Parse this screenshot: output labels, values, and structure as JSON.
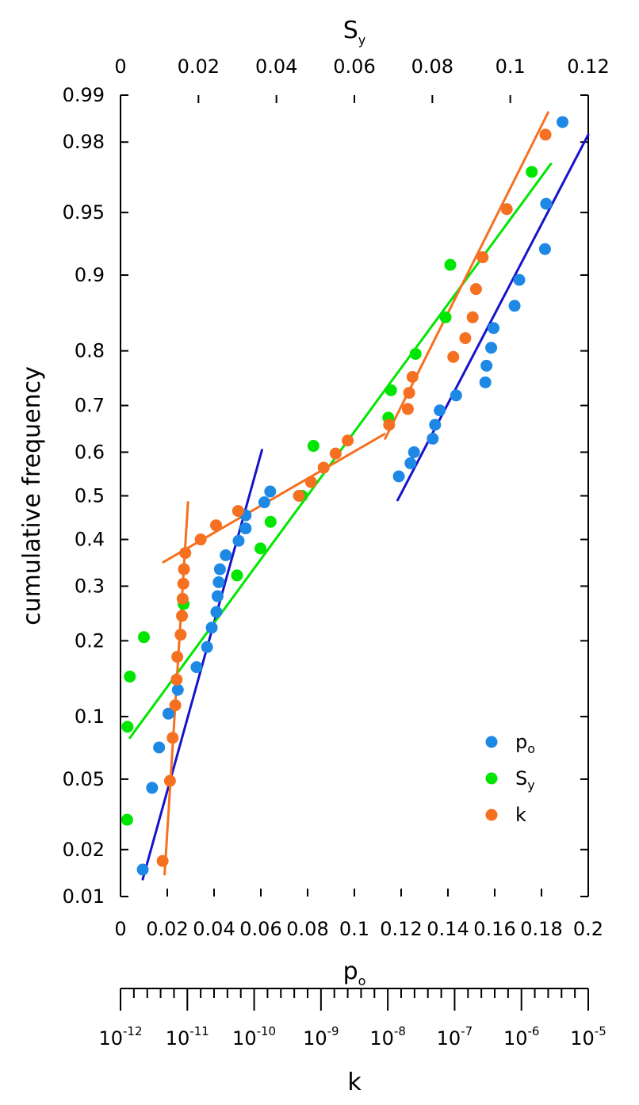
{
  "chart_data": {
    "type": "scatter",
    "title": "",
    "ylabel": "cumulative frequency",
    "y_scale": "probability",
    "y_ticks": [
      0.01,
      0.02,
      0.05,
      0.1,
      0.2,
      0.3,
      0.4,
      0.5,
      0.6,
      0.7,
      0.8,
      0.9,
      0.95,
      0.98,
      0.99
    ],
    "y_tick_labels": [
      "0.01",
      "0.02",
      "0.05",
      "0.1",
      "0.2",
      "0.3",
      "0.4",
      "0.5",
      "0.6",
      "0.7",
      "0.8",
      "0.9",
      "0.95",
      "0.98",
      "0.99"
    ],
    "ylim": [
      0.01,
      0.99
    ],
    "axes": {
      "top": {
        "label_main": "S",
        "label_sub": "y",
        "range": [
          0,
          0.12
        ],
        "ticks": [
          0,
          0.02,
          0.04,
          0.06,
          0.08,
          0.1,
          0.12
        ],
        "tick_labels": [
          "0",
          "0.02",
          "0.04",
          "0.06",
          "0.08",
          "0.1",
          "0.12"
        ]
      },
      "bottom": {
        "label_main": "p",
        "label_sub": "o",
        "range": [
          0,
          0.2
        ],
        "ticks": [
          0,
          0.02,
          0.04,
          0.06,
          0.08,
          0.1,
          0.12,
          0.14,
          0.16,
          0.18,
          0.2
        ],
        "tick_labels": [
          "0",
          "0.02",
          "0.04",
          "0.06",
          "0.08",
          "0.1",
          "0.12",
          "0.14",
          "0.16",
          "0.18",
          "0.2"
        ]
      },
      "k": {
        "label": "k",
        "scale": "log10",
        "range_exponent": [
          -12,
          -5
        ],
        "ticks_exponent": [
          -12,
          -11,
          -10,
          -9,
          -8,
          -7,
          -6,
          -5
        ],
        "tick_label_base": "10",
        "tick_label_exponents": [
          "-12",
          "-11",
          "-10",
          "-9",
          "-8",
          "-7",
          "-6",
          "-5"
        ]
      }
    },
    "legend": {
      "position": "bottom-right",
      "entries": [
        {
          "main": "p",
          "sub": "o",
          "color": "#1e88e5"
        },
        {
          "main": "S",
          "sub": "y",
          "color": "#00e600"
        },
        {
          "main": "k",
          "sub": "",
          "color": "#f57020"
        }
      ]
    },
    "series": [
      {
        "name": "po",
        "axis": "bottom",
        "color": "#1e88e5",
        "points": [
          [
            0.0095,
            0.015
          ],
          [
            0.0135,
            0.045
          ],
          [
            0.0165,
            0.072
          ],
          [
            0.0205,
            0.103
          ],
          [
            0.0245,
            0.13
          ],
          [
            0.0325,
            0.16
          ],
          [
            0.037,
            0.19
          ],
          [
            0.039,
            0.222
          ],
          [
            0.041,
            0.25
          ],
          [
            0.0415,
            0.28
          ],
          [
            0.042,
            0.308
          ],
          [
            0.0425,
            0.335
          ],
          [
            0.045,
            0.365
          ],
          [
            0.0505,
            0.397
          ],
          [
            0.0535,
            0.425
          ],
          [
            0.0535,
            0.455
          ],
          [
            0.0615,
            0.485
          ],
          [
            0.064,
            0.51
          ],
          [
            0.119,
            0.545
          ],
          [
            0.124,
            0.575
          ],
          [
            0.1255,
            0.6
          ],
          [
            0.1335,
            0.63
          ],
          [
            0.1345,
            0.66
          ],
          [
            0.1365,
            0.69
          ],
          [
            0.1435,
            0.72
          ],
          [
            0.156,
            0.745
          ],
          [
            0.1565,
            0.775
          ],
          [
            0.1585,
            0.805
          ],
          [
            0.1595,
            0.835
          ],
          [
            0.1685,
            0.865
          ],
          [
            0.1705,
            0.895
          ],
          [
            0.1815,
            0.924
          ],
          [
            0.182,
            0.955
          ],
          [
            0.189,
            0.985
          ]
        ],
        "fits": [
          {
            "from": [
              0.0095,
              0.013
            ],
            "to": [
              0.0605,
              0.605
            ]
          },
          {
            "from": [
              0.1185,
              0.49
            ],
            "to": [
              0.2,
              0.982
            ]
          }
        ]
      },
      {
        "name": "Sy",
        "axis": "top",
        "color": "#00e600",
        "points": [
          [
            0.0017,
            0.03
          ],
          [
            0.0018,
            0.09
          ],
          [
            0.0024,
            0.147
          ],
          [
            0.006,
            0.206
          ],
          [
            0.0162,
            0.265
          ],
          [
            0.0299,
            0.322
          ],
          [
            0.0359,
            0.38
          ],
          [
            0.0385,
            0.44
          ],
          [
            0.0466,
            0.5
          ],
          [
            0.0495,
            0.614
          ],
          [
            0.0687,
            0.675
          ],
          [
            0.0694,
            0.73
          ],
          [
            0.0757,
            0.795
          ],
          [
            0.0834,
            0.85
          ],
          [
            0.0846,
            0.91
          ],
          [
            0.1055,
            0.97
          ]
        ],
        "fits": [
          {
            "from": [
              0.0024,
              0.08
            ],
            "to": [
              0.1104,
              0.973
            ]
          }
        ]
      },
      {
        "name": "k",
        "axis": "k",
        "color": "#f57020",
        "points": [
          [
            -11.37,
            0.017
          ],
          [
            -11.26,
            0.049
          ],
          [
            -11.22,
            0.08
          ],
          [
            -11.18,
            0.112
          ],
          [
            -11.16,
            0.143
          ],
          [
            -11.15,
            0.175
          ],
          [
            -11.1,
            0.21
          ],
          [
            -11.08,
            0.243
          ],
          [
            -11.07,
            0.275
          ],
          [
            -11.06,
            0.305
          ],
          [
            -11.05,
            0.335
          ],
          [
            -11.03,
            0.37
          ],
          [
            -10.8,
            0.4
          ],
          [
            -10.57,
            0.432
          ],
          [
            -10.24,
            0.465
          ],
          [
            -9.33,
            0.5
          ],
          [
            -9.15,
            0.532
          ],
          [
            -8.96,
            0.565
          ],
          [
            -8.78,
            0.597
          ],
          [
            -8.6,
            0.626
          ],
          [
            -7.98,
            0.66
          ],
          [
            -7.7,
            0.693
          ],
          [
            -7.68,
            0.725
          ],
          [
            -7.63,
            0.755
          ],
          [
            -7.02,
            0.79
          ],
          [
            -6.84,
            0.82
          ],
          [
            -6.73,
            0.85
          ],
          [
            -6.68,
            0.885
          ],
          [
            -6.58,
            0.917
          ],
          [
            -6.22,
            0.952
          ],
          [
            -5.64,
            0.982
          ]
        ],
        "fits": [
          {
            "from": [
              -11.34,
              0.014
            ],
            "to": [
              -10.99,
              0.485
            ]
          },
          {
            "from": [
              -11.36,
              0.35
            ],
            "to": [
              -8.05,
              0.64
            ]
          },
          {
            "from": [
              -8.04,
              0.63
            ],
            "to": [
              -5.6,
              0.987
            ]
          }
        ]
      }
    ]
  }
}
